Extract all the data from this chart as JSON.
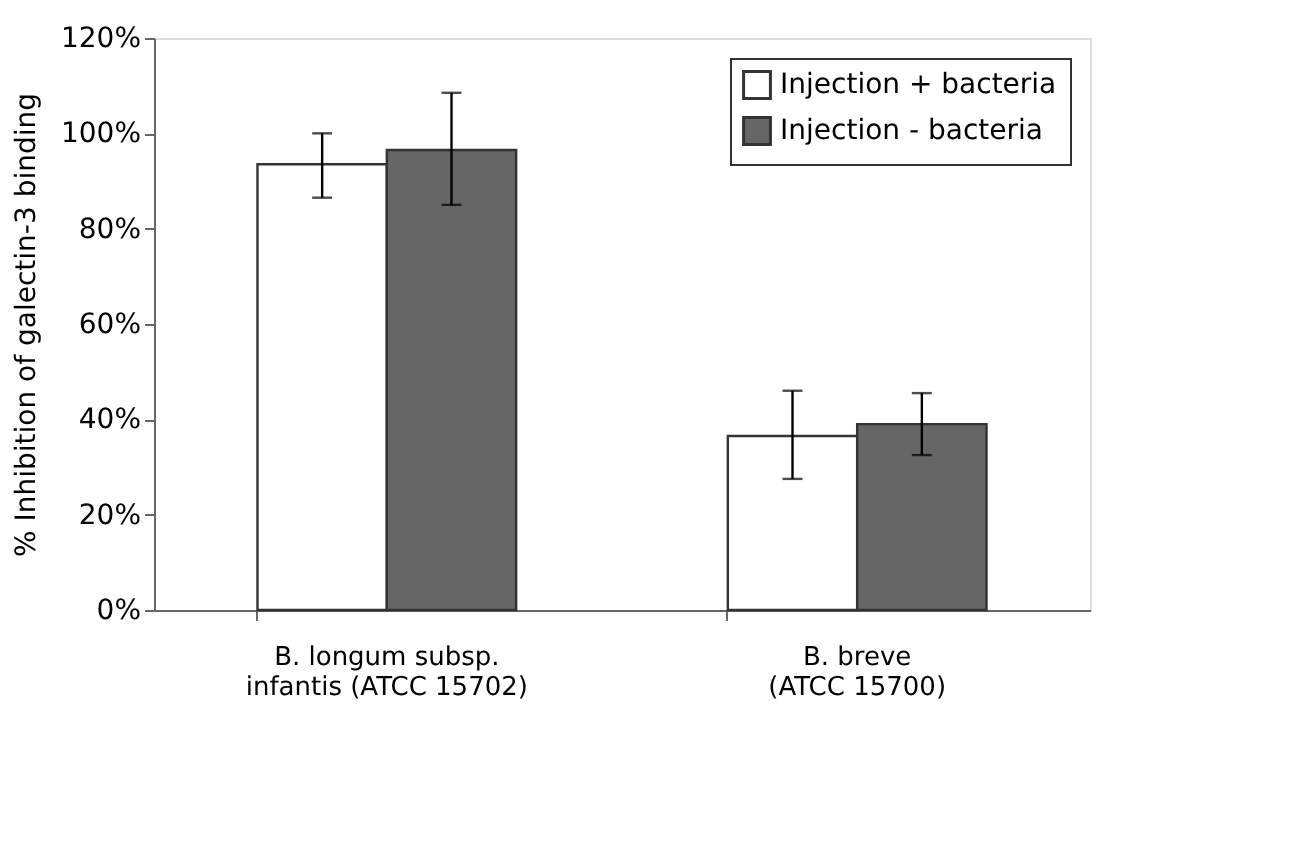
{
  "chart_data": {
    "type": "bar",
    "ylabel": "% Inhibition of galectin-3 binding",
    "categories": [
      "B. longum subsp.\ninfantis (ATCC 15702)",
      "B. breve\n(ATCC 15700)"
    ],
    "series": [
      {
        "name": "Injection + bacteria",
        "color": "#ffffff",
        "values": [
          93.5,
          36.5
        ],
        "errors": [
          [
            86.5,
            100
          ],
          [
            27.5,
            46
          ]
        ]
      },
      {
        "name": "Injection - bacteria",
        "color": "#666666",
        "values": [
          96.5,
          39
        ],
        "errors": [
          [
            85,
            108.5
          ],
          [
            32.5,
            45.5
          ]
        ]
      }
    ],
    "ylim": [
      0,
      120
    ],
    "yticks": [
      {
        "value": 0,
        "label": "0%"
      },
      {
        "value": 20,
        "label": "20%"
      },
      {
        "value": 40,
        "label": "40%"
      },
      {
        "value": 60,
        "label": "60%"
      },
      {
        "value": 80,
        "label": "80%"
      },
      {
        "value": 100,
        "label": "100%"
      },
      {
        "value": 120,
        "label": "120%"
      }
    ],
    "grid": false,
    "legend": "top right"
  }
}
